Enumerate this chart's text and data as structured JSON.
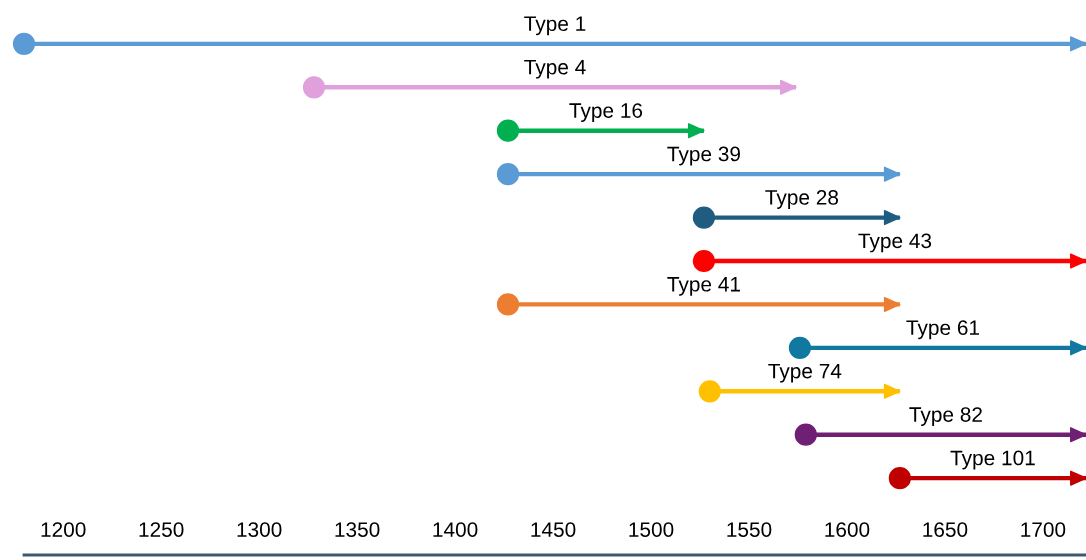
{
  "chart_data": {
    "type": "bar",
    "orientation": "horizontal",
    "tick_labels": "x",
    "marker": "circle",
    "grid": false,
    "categories": [
      "Type 1",
      "Type 4",
      "Type 16",
      "Type 39",
      "Type 28",
      "Type 43",
      "Type 41",
      "Type 61",
      "Type 74",
      "Type 82",
      "Type 101"
    ],
    "base": [
      1180,
      1328,
      1427,
      1427,
      1527,
      1527,
      1427,
      1576,
      1530,
      1579,
      1627
    ],
    "values": [
      542,
      246,
      100,
      200,
      100,
      195,
      200,
      146,
      97,
      143,
      95
    ],
    "colors": [
      "#5b9bd5",
      "#e0a0dc",
      "#00b050",
      "#5b9bd5",
      "#1f5c80",
      "#ff0000",
      "#ed7d31",
      "#1178a0",
      "#ffc000",
      "#6f2075",
      "#c00000"
    ],
    "xlim": [
      1180,
      1722
    ],
    "xticks": [
      1200,
      1250,
      1300,
      1350,
      1400,
      1450,
      1500,
      1550,
      1600,
      1650,
      1700
    ]
  }
}
